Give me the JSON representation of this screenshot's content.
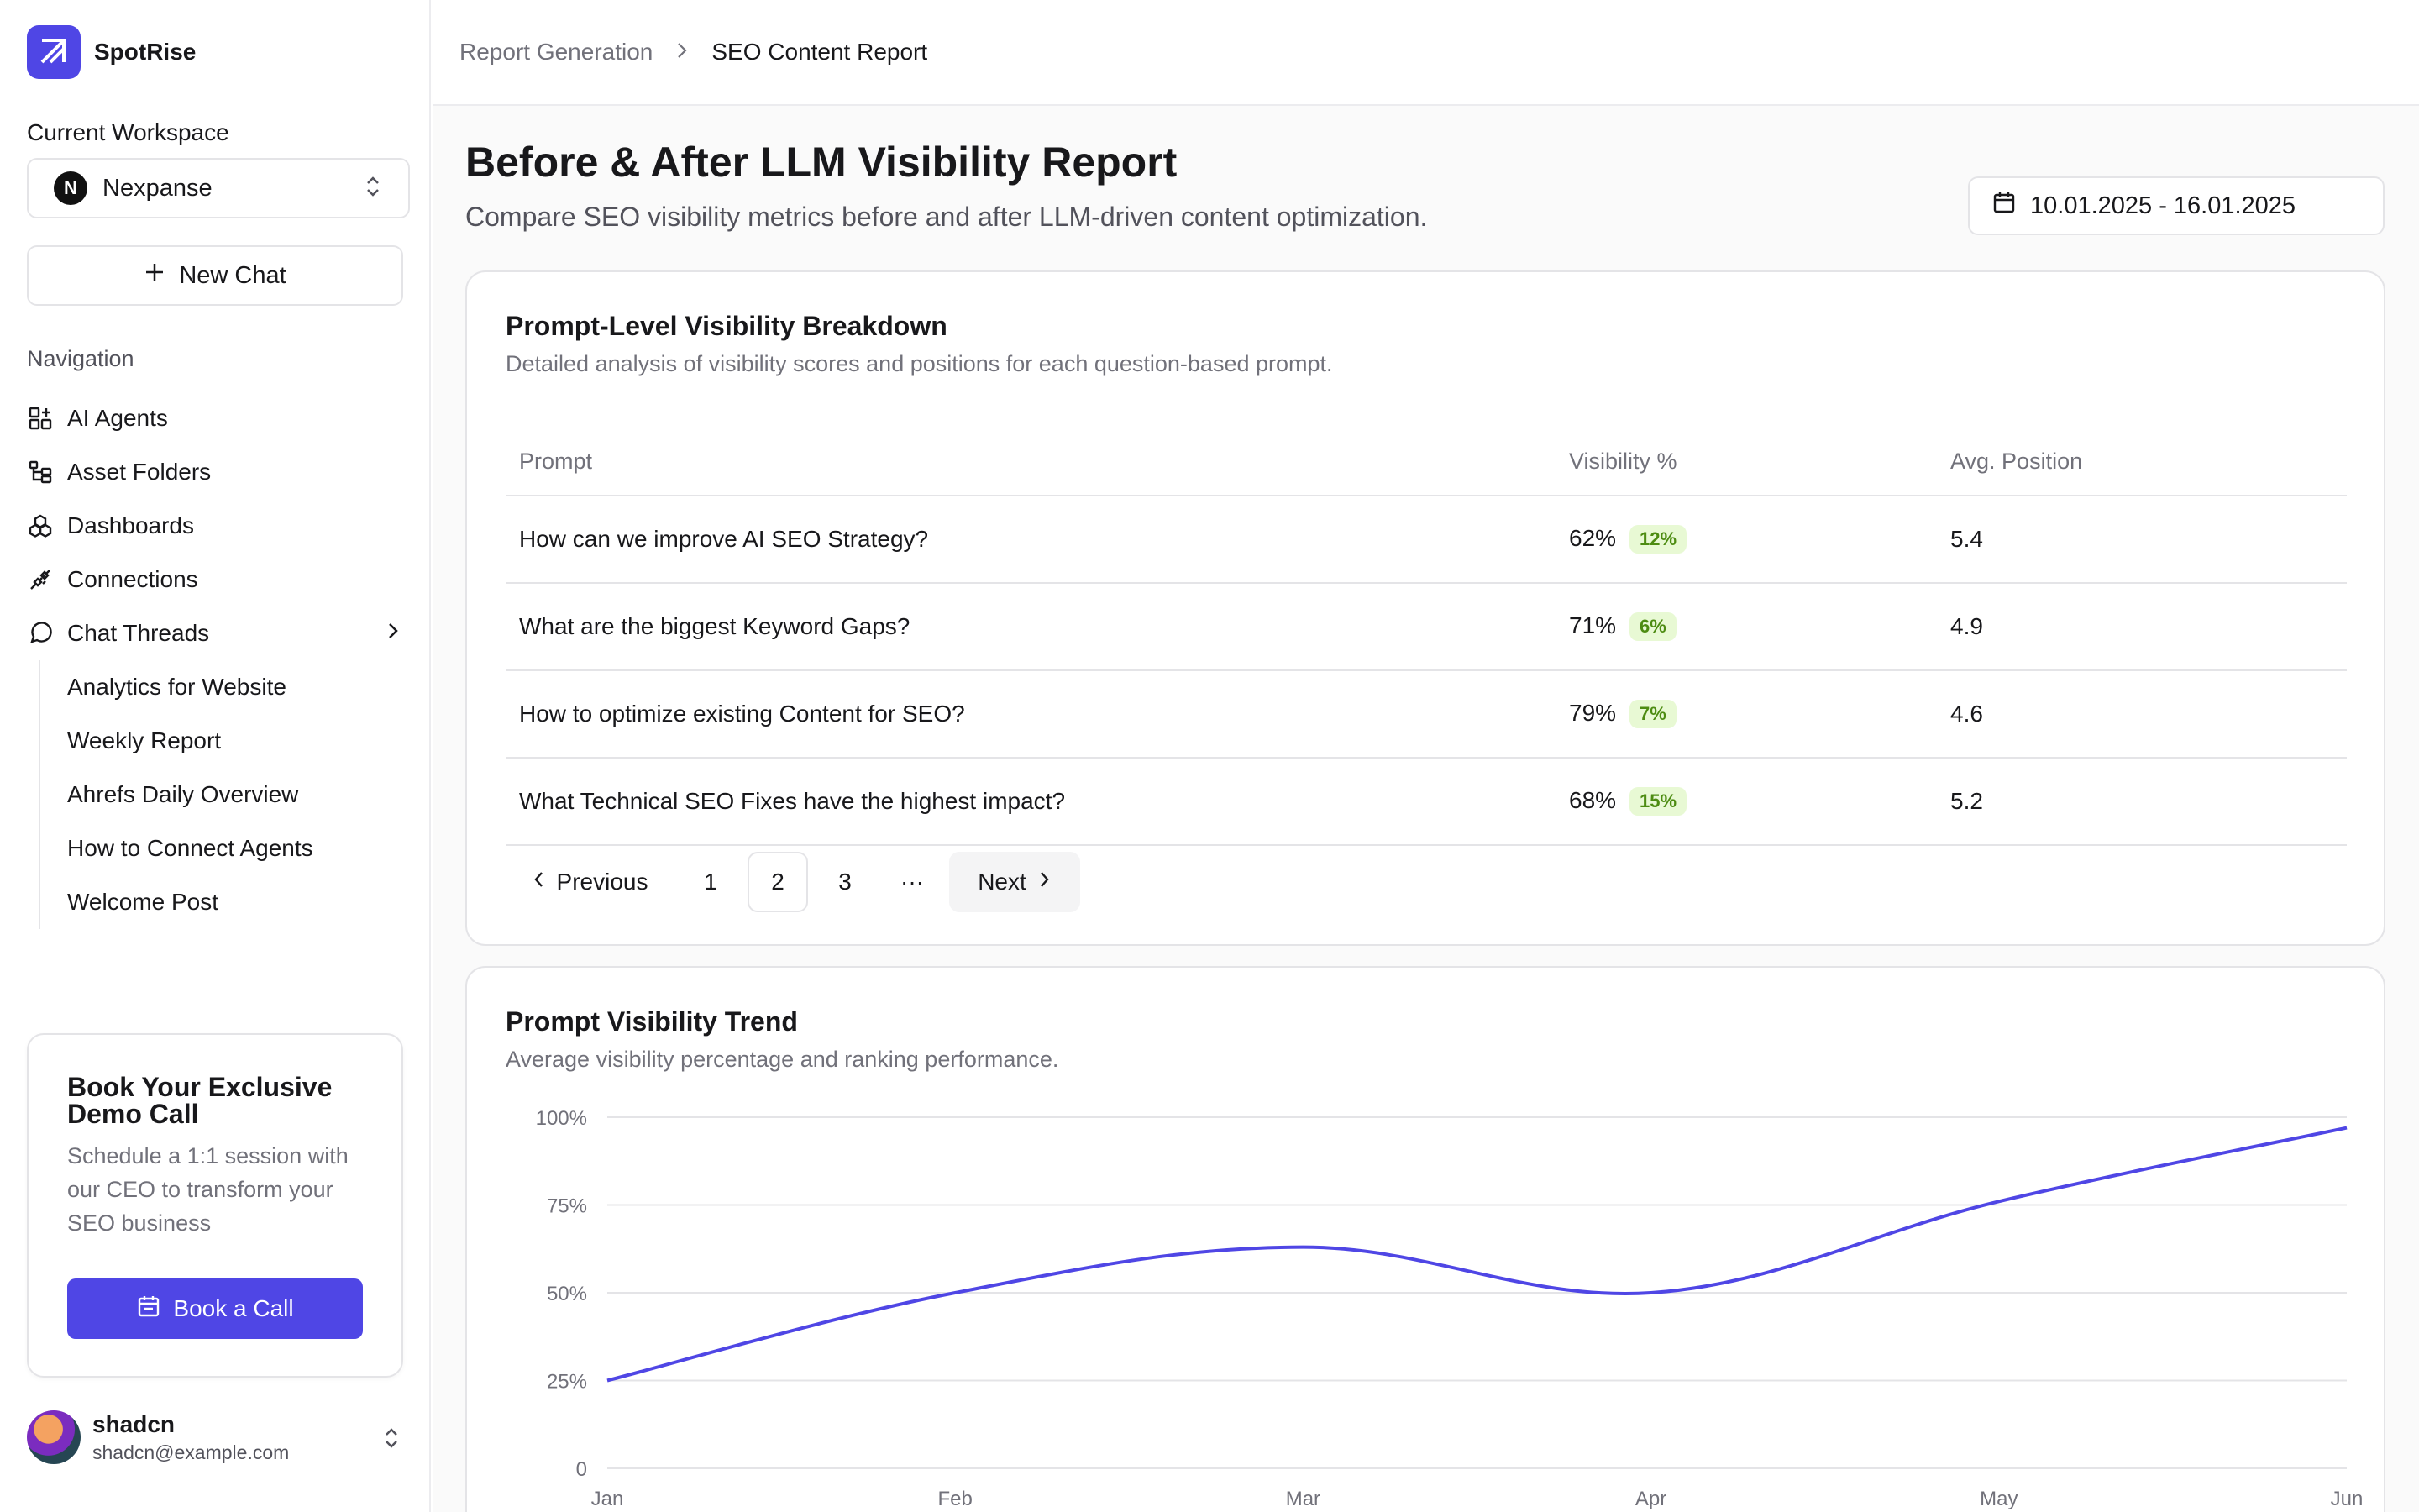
{
  "app": {
    "name": "SpotRise"
  },
  "sidebar": {
    "workspace_label": "Current Workspace",
    "workspace": {
      "initial": "N",
      "name": "Nexpanse"
    },
    "new_chat_label": "New Chat",
    "nav_label": "Navigation",
    "items": [
      {
        "label": "AI Agents",
        "icon": "grid-plus-icon"
      },
      {
        "label": "Asset Folders",
        "icon": "folder-tree-icon"
      },
      {
        "label": "Dashboards",
        "icon": "boxes-icon"
      },
      {
        "label": "Connections",
        "icon": "plug-icon"
      },
      {
        "label": "Chat Threads",
        "icon": "message-circle-icon"
      }
    ],
    "threads": [
      "Analytics for Website",
      "Weekly Report",
      "Ahrefs Daily Overview",
      "How to Connect Agents",
      "Welcome Post"
    ],
    "demo": {
      "title": "Book Your Exclusive Demo Call",
      "text": "Schedule a 1:1 session with our CEO to transform your SEO business",
      "button": "Book a Call"
    },
    "user": {
      "name": "shadcn",
      "email": "shadcn@example.com"
    }
  },
  "breadcrumb": {
    "parent": "Report Generation",
    "current": "SEO Content Report"
  },
  "page": {
    "title": "Before & After LLM Visibility Report",
    "subtitle": "Compare SEO visibility metrics before and after LLM-driven content optimization.",
    "date_range": "10.01.2025 - 16.01.2025"
  },
  "breakdown": {
    "title": "Prompt-Level Visibility Breakdown",
    "subtitle": "Detailed analysis of visibility scores and positions for each question-based prompt.",
    "columns": [
      "Prompt",
      "Visibility %",
      "Avg. Position"
    ],
    "rows": [
      {
        "prompt": "How can we improve AI SEO Strategy?",
        "visibility": "62%",
        "change": "12%",
        "position": "5.4"
      },
      {
        "prompt": "What are the biggest Keyword Gaps?",
        "visibility": "71%",
        "change": "6%",
        "position": "4.9"
      },
      {
        "prompt": "How to optimize existing Content for SEO?",
        "visibility": "79%",
        "change": "7%",
        "position": "4.6"
      },
      {
        "prompt": "What Technical SEO Fixes have the highest impact?",
        "visibility": "68%",
        "change": "15%",
        "position": "5.2"
      }
    ],
    "pagination": {
      "previous": "Previous",
      "pages": [
        "1",
        "2",
        "3"
      ],
      "current_page": "2",
      "ellipsis": "···",
      "next": "Next"
    }
  },
  "trend": {
    "title": "Prompt Visibility Trend",
    "subtitle": "Average visibility percentage and ranking performance."
  },
  "chart_data": {
    "type": "line",
    "x": [
      "Jan",
      "Feb",
      "Mar",
      "Apr",
      "May",
      "Jun"
    ],
    "series": [
      {
        "values": [
          25,
          50,
          63,
          50,
          76,
          97
        ],
        "color": "#4f46e5"
      }
    ],
    "y_ticks": [
      "0",
      "25%",
      "50%",
      "75%",
      "100%"
    ],
    "ylim": [
      0,
      100
    ],
    "grid": true
  },
  "colors": {
    "accent": "#4f46e5",
    "badge_bg": "#e8f9d4",
    "badge_text": "#4d8c12"
  }
}
